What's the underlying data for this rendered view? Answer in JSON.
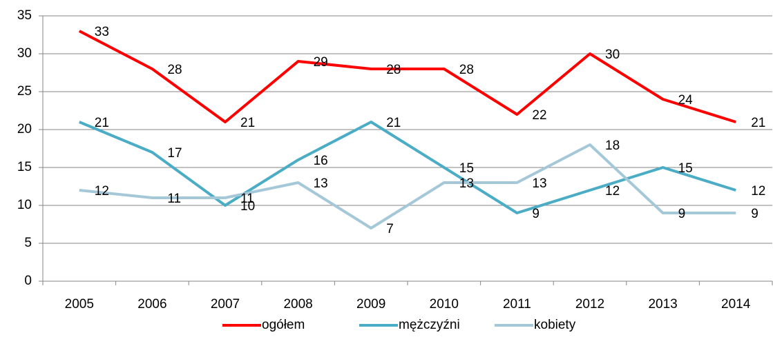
{
  "chart_data": {
    "type": "line",
    "categories": [
      "2005",
      "2006",
      "2007",
      "2008",
      "2009",
      "2010",
      "2011",
      "2012",
      "2013",
      "2014"
    ],
    "series": [
      {
        "name": "ogółem",
        "color": "#ff0000",
        "values": [
          33,
          28,
          21,
          29,
          28,
          28,
          22,
          30,
          24,
          21
        ]
      },
      {
        "name": "mężczyźni",
        "color": "#4bacc6",
        "values": [
          21,
          17,
          10,
          16,
          21,
          15,
          9,
          12,
          15,
          12
        ]
      },
      {
        "name": "kobiety",
        "color": "#a5c8d8",
        "values": [
          12,
          11,
          11,
          13,
          7,
          13,
          13,
          18,
          9,
          9
        ]
      }
    ],
    "ylim": [
      0,
      35
    ],
    "yticks": [
      0,
      5,
      10,
      15,
      20,
      25,
      30,
      35
    ],
    "grid": true,
    "legend": "bottom"
  }
}
